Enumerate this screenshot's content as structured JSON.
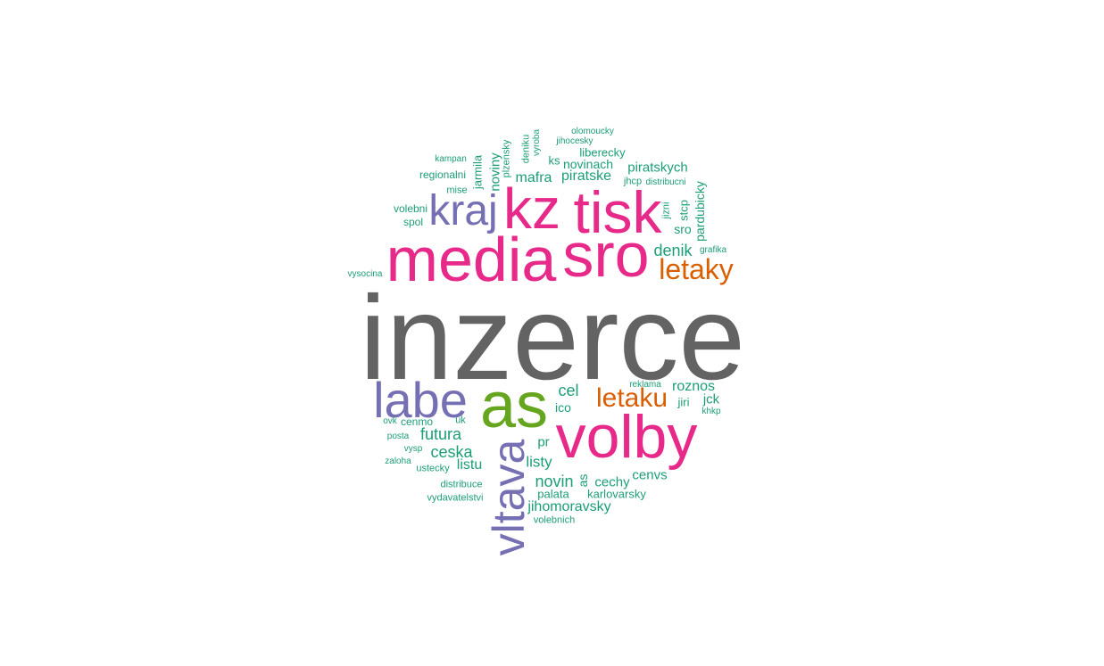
{
  "palette": {
    "gray": "#636363",
    "pink": "#e7298a",
    "green": "#66a61e",
    "purple": "#7570b3",
    "orange": "#d95f02",
    "teal": "#1b9e77"
  },
  "words": {
    "inzerce": "inzerce",
    "media": "media",
    "sro": "sro",
    "tisk": "tisk",
    "kz": "kz",
    "kraj": "kraj",
    "labe": "labe",
    "as": "as",
    "volby": "volby",
    "vltava": "vltava",
    "letaky": "letaky",
    "letaku": "letaku",
    "denik": "denik",
    "roznos": "roznos",
    "cel": "cel",
    "ico": "ico",
    "futura": "futura",
    "ceska": "ceska",
    "listu": "listu",
    "listy": "listy",
    "pr": "pr",
    "novin": "novin",
    "as_small": "as",
    "cechy": "cechy",
    "cenvs": "cenvs",
    "jihomoravsky": "jihomoravsky",
    "karlovarsky": "karlovarsky",
    "palata": "palata",
    "vydavatelstvi": "vydavatelstvi",
    "distribuce": "distribuce",
    "volebnich": "volebnich",
    "ustecky": "ustecky",
    "zaloha": "zaloha",
    "vysp": "vysp",
    "posta": "posta",
    "ovk": "ovk",
    "cenmo": "cenmo",
    "uk": "uk",
    "reklama": "reklama",
    "jiri": "jiri",
    "jck": "jck",
    "khkp": "khkp",
    "vysocina": "vysocina",
    "volebni": "volebni",
    "spol": "spol",
    "mise": "mise",
    "regionalni": "regionalni",
    "kampan": "kampan",
    "jarmila": "jarmila",
    "noviny": "noviny",
    "plzensky": "plzensky",
    "deniku": "deniku",
    "vyroba": "vyroba",
    "olomoucky": "olomoucky",
    "jihocesky": "jihocesky",
    "liberecky": "liberecky",
    "ks": "ks",
    "novinach": "novinach",
    "mafra": "mafra",
    "piratske": "piratske",
    "piratskych": "piratskych",
    "jhcp": "jhcp",
    "distribucni": "distribucni",
    "jizni": "jizni",
    "stcp": "stcp",
    "sro_small": "sro",
    "pardubicky": "pardubicky",
    "grafika": "grafika"
  }
}
